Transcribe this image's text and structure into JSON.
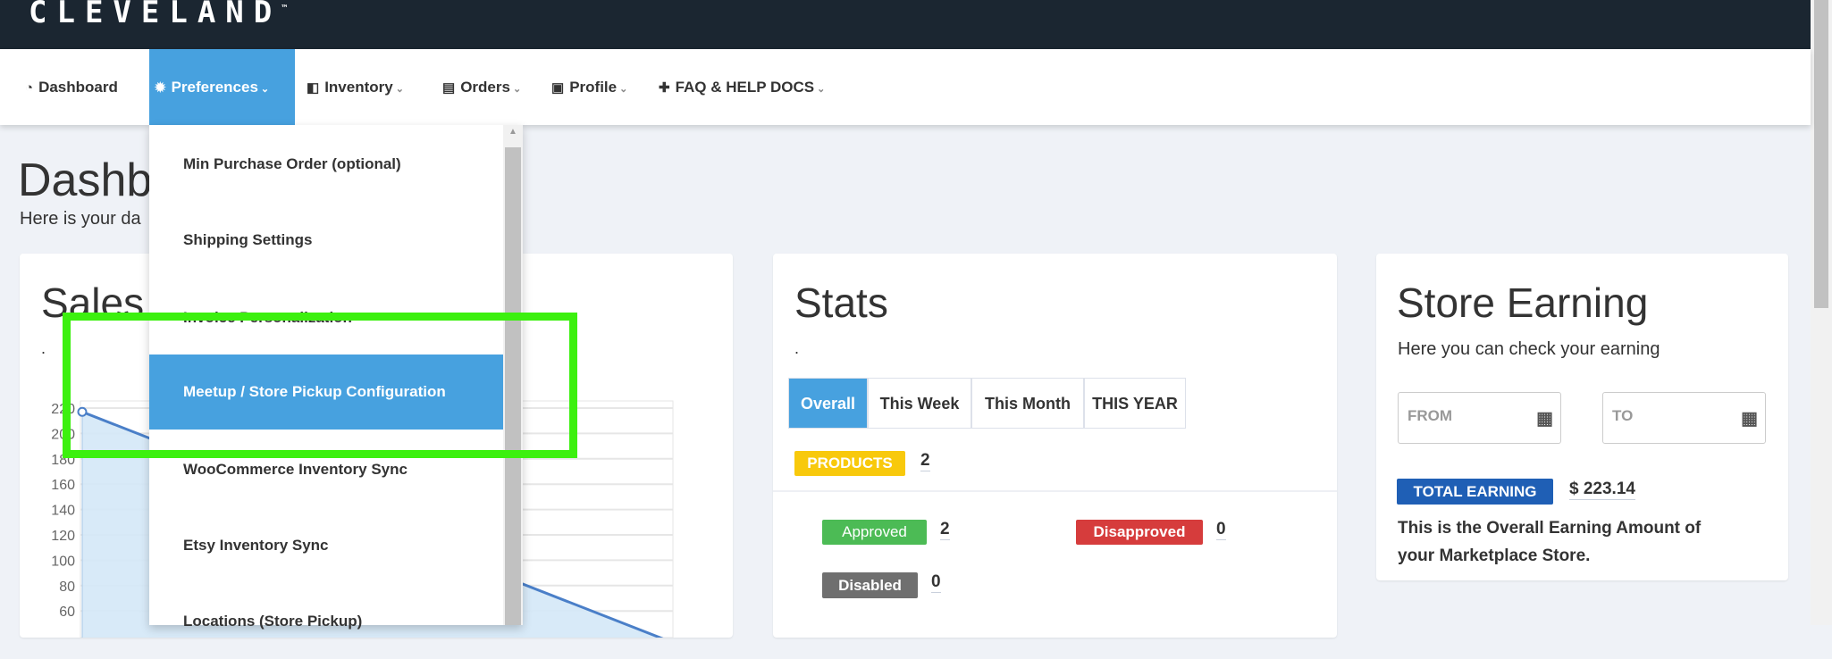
{
  "brand": {
    "logo": "CLEVELAND",
    "tm": "™"
  },
  "nav": {
    "items": [
      {
        "label": "Dashboard",
        "icon": "dashboard-icon",
        "dropdown": false
      },
      {
        "label": "Preferences",
        "icon": "gear-icon",
        "dropdown": true,
        "active": true
      },
      {
        "label": "Inventory",
        "icon": "inventory-icon",
        "dropdown": true
      },
      {
        "label": "Orders",
        "icon": "orders-icon",
        "dropdown": true
      },
      {
        "label": "Profile",
        "icon": "profile-card-icon",
        "dropdown": true
      },
      {
        "label": "FAQ & HELP DOCS",
        "icon": "puzzle-icon",
        "dropdown": true
      }
    ]
  },
  "dropdown": {
    "items": [
      {
        "label": "Min Purchase Order (optional)"
      },
      {
        "label": "Shipping Settings"
      },
      {
        "label": "Invoice Personalization"
      },
      {
        "label": "Meetup / Store Pickup Configuration",
        "highlighted": true
      },
      {
        "label": "WooCommerce Inventory Sync"
      },
      {
        "label": "Etsy Inventory Sync"
      },
      {
        "label": "Locations (Store Pickup)"
      }
    ]
  },
  "page": {
    "title": "Dashb",
    "subtitle": "Here is your da"
  },
  "sales": {
    "title": "Sales",
    "dot": "."
  },
  "chart_data": {
    "type": "area",
    "yticks": [
      220,
      200,
      180,
      160,
      140,
      120,
      100,
      80,
      60
    ],
    "ylim": [
      0,
      220
    ],
    "grid": true,
    "series": [
      {
        "values": [
          217,
          35
        ]
      }
    ],
    "color": "#4a7fc8",
    "fill": "#d4e8f7"
  },
  "stats": {
    "title": "Stats",
    "dot": ".",
    "tabs": [
      "Overall",
      "This Week",
      "This Month",
      "THIS YEAR"
    ],
    "products": {
      "label": "PRODUCTS",
      "value": "2"
    },
    "approved": {
      "label": "Approved",
      "value": "2"
    },
    "disapproved": {
      "label": "Disapproved",
      "value": "0"
    },
    "disabled": {
      "label": "Disabled",
      "value": "0"
    }
  },
  "earning": {
    "title": "Store Earning",
    "subtitle": "Here you can check your earning",
    "from_placeholder": "FROM",
    "to_placeholder": "TO",
    "total_label": "TOTAL EARNING",
    "total_value": "$ 223.14",
    "desc_1": "This is the Overall Earning Amount of",
    "desc_2": "your Marketplace Store."
  },
  "colors": {
    "topbar": "#1b2631",
    "accent": "#47a1df",
    "products": "#f8c90c",
    "approved": "#4cbb55",
    "disapproved": "#d63c3c",
    "disabled": "#6f6f6f",
    "total": "#1f5fb5",
    "highlight_box": "#3cf00f"
  }
}
